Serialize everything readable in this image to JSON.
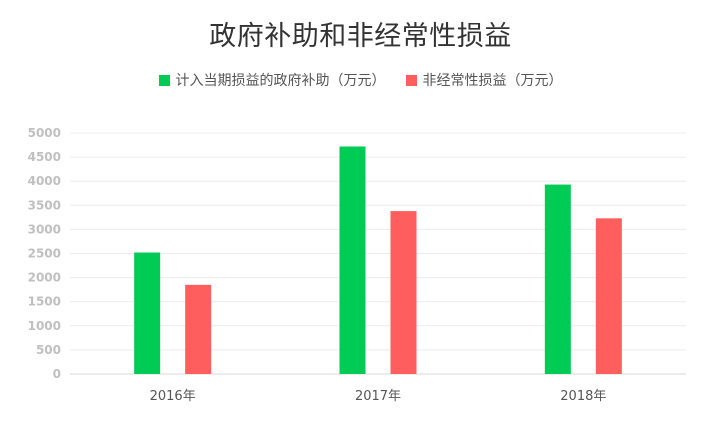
{
  "chart_data": {
    "type": "bar",
    "title": "政府补助和非经常性损益",
    "categories": [
      "2016年",
      "2017年",
      "2018年"
    ],
    "series": [
      {
        "name": "计入当期损益的政府补助（万元）",
        "color": "#00cc55",
        "values": [
          2520,
          4720,
          3930
        ]
      },
      {
        "name": "非经常性损益（万元）",
        "color": "#ff5e5e",
        "values": [
          1850,
          3380,
          3230
        ]
      }
    ],
    "ylim": [
      0,
      5000
    ],
    "yticks": [
      "0",
      "500",
      "1000",
      "1500",
      "2000",
      "2500",
      "3000",
      "3500",
      "4000",
      "4500",
      "5000"
    ],
    "grid": true,
    "legend_position": "top-center"
  }
}
